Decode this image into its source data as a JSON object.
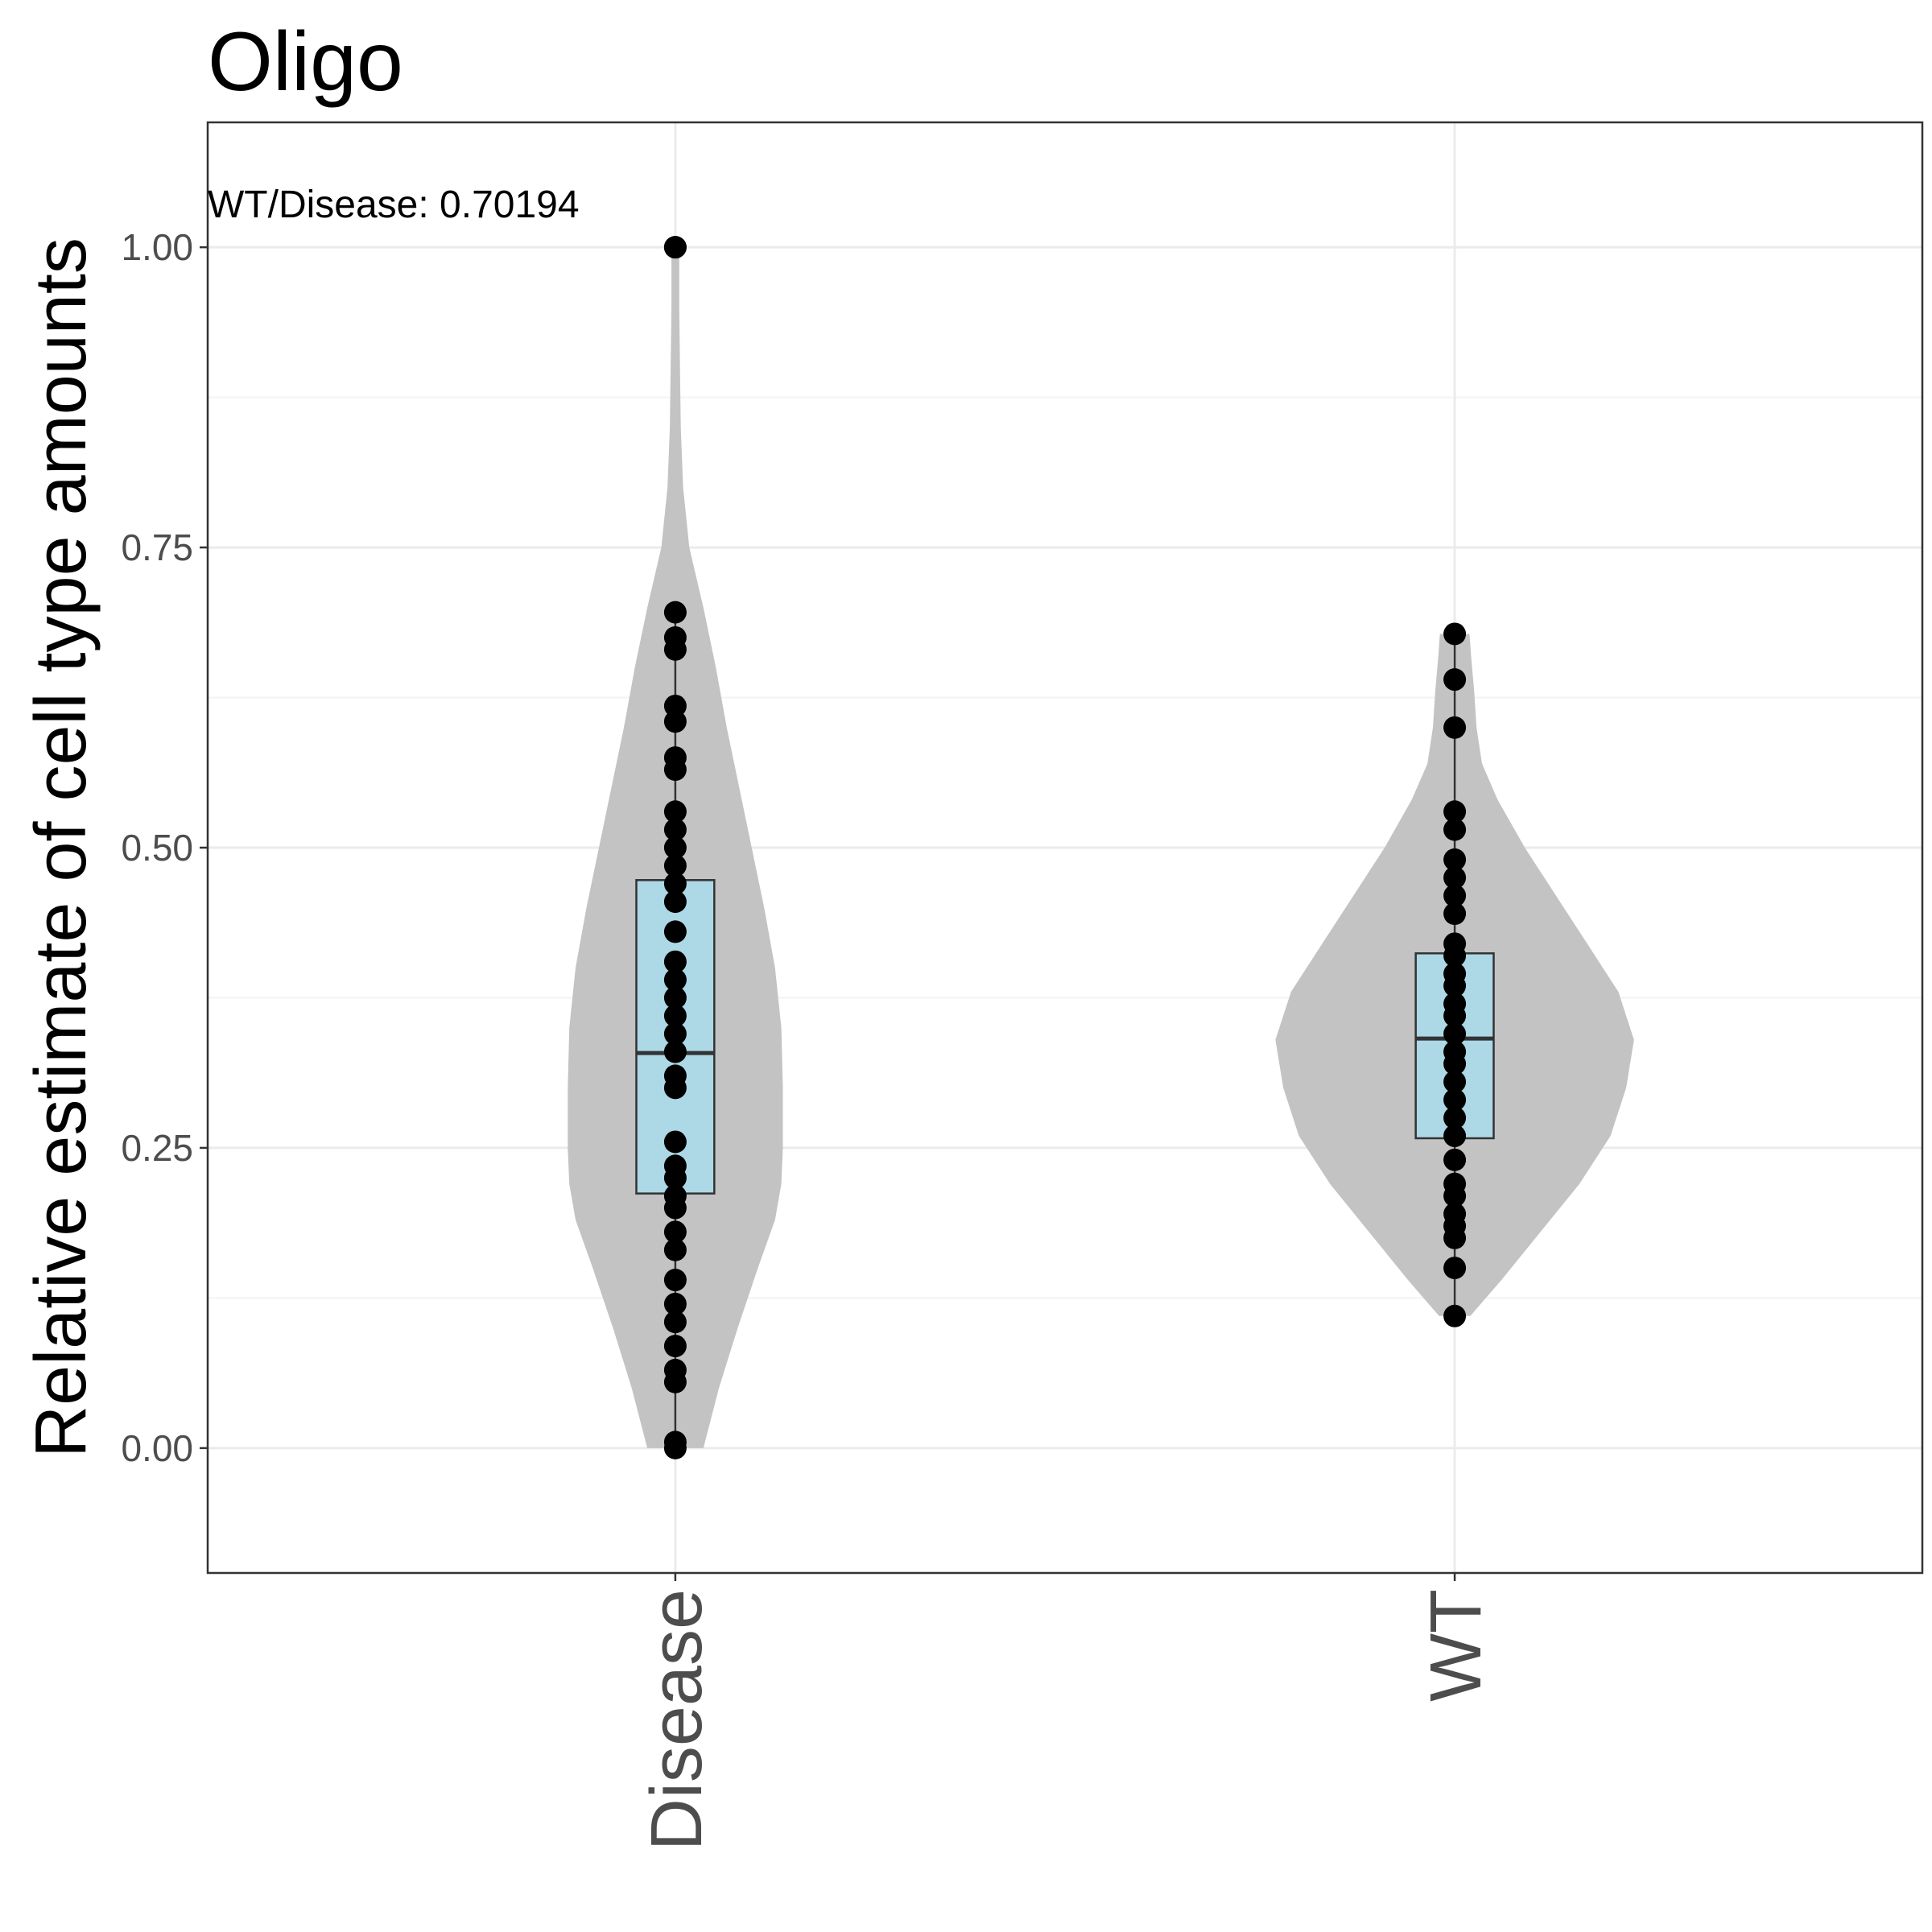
{
  "chart_data": {
    "type": "violin",
    "title": "Oligo",
    "xlabel": "",
    "ylabel": "Relative estimate of cell type amounts",
    "annotation": "WT/Disease: 0.70194",
    "categories": [
      "Disease",
      "WT"
    ],
    "ylim": [
      -0.104,
      1.104
    ],
    "yticks": [
      0.0,
      0.25,
      0.5,
      0.75,
      1.0
    ],
    "ytick_labels": [
      "0.00",
      "0.25",
      "0.50",
      "0.75",
      "1.00"
    ],
    "grid": true,
    "colors": {
      "violin": "#c3c3c3",
      "box": "#add8e6",
      "points": "#000000",
      "grid_major": "#ebebeb",
      "grid_minor": "#f3f3f3",
      "panel_border": "#333333"
    },
    "violin_profiles": [
      {
        "category": "Disease",
        "ymin": 0.0,
        "ymax": 1.0,
        "half_widths": [
          [
            0.0,
            0.036
          ],
          [
            0.05,
            0.056
          ],
          [
            0.1,
            0.08
          ],
          [
            0.15,
            0.106
          ],
          [
            0.19,
            0.128
          ],
          [
            0.22,
            0.136
          ],
          [
            0.25,
            0.138
          ],
          [
            0.3,
            0.138
          ],
          [
            0.35,
            0.136
          ],
          [
            0.4,
            0.128
          ],
          [
            0.45,
            0.114
          ],
          [
            0.5,
            0.098
          ],
          [
            0.55,
            0.082
          ],
          [
            0.6,
            0.066
          ],
          [
            0.65,
            0.052
          ],
          [
            0.7,
            0.036
          ],
          [
            0.75,
            0.018
          ],
          [
            0.8,
            0.01
          ],
          [
            0.85,
            0.007
          ],
          [
            0.9,
            0.006
          ],
          [
            0.95,
            0.005
          ],
          [
            1.0,
            0.005
          ]
        ]
      },
      {
        "category": "WT",
        "ymin": 0.11,
        "ymax": 0.678,
        "half_widths": [
          [
            0.11,
            0.02
          ],
          [
            0.14,
            0.06
          ],
          [
            0.18,
            0.11
          ],
          [
            0.22,
            0.16
          ],
          [
            0.26,
            0.2
          ],
          [
            0.3,
            0.22
          ],
          [
            0.34,
            0.23
          ],
          [
            0.38,
            0.21
          ],
          [
            0.42,
            0.17
          ],
          [
            0.46,
            0.13
          ],
          [
            0.5,
            0.09
          ],
          [
            0.54,
            0.055
          ],
          [
            0.57,
            0.035
          ],
          [
            0.6,
            0.028
          ],
          [
            0.63,
            0.025
          ],
          [
            0.66,
            0.021
          ],
          [
            0.678,
            0.019
          ]
        ]
      }
    ],
    "boxplots": [
      {
        "category": "Disease",
        "lower_whisker": 0.0,
        "q1": 0.212,
        "median": 0.329,
        "q3": 0.473,
        "upper_whisker": 0.696
      },
      {
        "category": "WT",
        "lower_whisker": 0.11,
        "q1": 0.258,
        "median": 0.341,
        "q3": 0.412,
        "upper_whisker": 0.678
      }
    ],
    "outliers": [
      {
        "category": "Disease",
        "values": [
          1.0
        ]
      }
    ],
    "points": [
      {
        "category": "Disease",
        "values": [
          0.0,
          0.005,
          0.055,
          0.065,
          0.085,
          0.105,
          0.12,
          0.14,
          0.165,
          0.18,
          0.2,
          0.21,
          0.225,
          0.235,
          0.255,
          0.3,
          0.31,
          0.33,
          0.345,
          0.36,
          0.375,
          0.39,
          0.405,
          0.43,
          0.455,
          0.47,
          0.485,
          0.5,
          0.515,
          0.53,
          0.565,
          0.575,
          0.605,
          0.618,
          0.665,
          0.675,
          0.696,
          1.0
        ]
      },
      {
        "category": "WT",
        "values": [
          0.11,
          0.15,
          0.175,
          0.185,
          0.195,
          0.21,
          0.22,
          0.24,
          0.26,
          0.275,
          0.29,
          0.305,
          0.32,
          0.33,
          0.345,
          0.36,
          0.37,
          0.385,
          0.395,
          0.41,
          0.42,
          0.445,
          0.46,
          0.475,
          0.49,
          0.515,
          0.53,
          0.6,
          0.64,
          0.678
        ]
      }
    ]
  }
}
